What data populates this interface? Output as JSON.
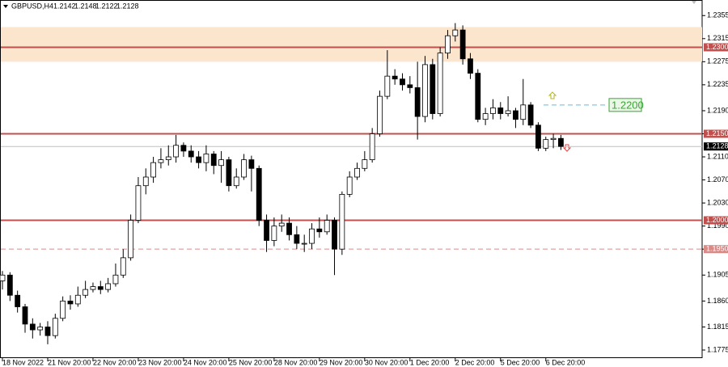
{
  "chart_data": {
    "type": "candlestick",
    "title": "GBPUSD,H4",
    "categories": [
      "18 Nov 2022",
      null,
      null,
      null,
      null,
      null,
      "21 Nov 20:00",
      null,
      null,
      null,
      null,
      null,
      "22 Nov 20:00",
      null,
      null,
      null,
      null,
      null,
      "23 Nov 20:00",
      null,
      null,
      null,
      null,
      null,
      "24 Nov 20:00",
      null,
      null,
      null,
      null,
      null,
      "25 Nov 20:00",
      null,
      null,
      null,
      null,
      null,
      "28 Nov 20:00",
      null,
      null,
      null,
      null,
      null,
      "29 Nov 20:00",
      null,
      null,
      null,
      null,
      null,
      "30 Nov 20:00",
      null,
      null,
      null,
      null,
      null,
      "1 Dec 20:00",
      null,
      null,
      null,
      null,
      null,
      "2 Dec 20:00",
      null,
      null,
      null,
      null,
      null,
      "5 Dec 20:00",
      null,
      null,
      null,
      null,
      null,
      "6 Dec 20:00",
      null,
      null
    ],
    "open": [
      1.1895,
      1.1905,
      1.187,
      1.185,
      1.182,
      1.181,
      1.1815,
      1.18,
      1.183,
      1.186,
      1.1855,
      1.187,
      1.188,
      1.1885,
      1.188,
      1.189,
      1.1905,
      1.1935,
      1.2,
      1.206,
      1.2075,
      1.21,
      1.2105,
      1.211,
      1.213,
      1.212,
      1.211,
      1.21,
      1.2115,
      1.2095,
      1.2105,
      1.206,
      1.2075,
      1.2105,
      1.209,
      1.2,
      1.1965,
      1.199,
      1.1995,
      1.1975,
      1.196,
      1.196,
      1.1985,
      1.198,
      1.2,
      1.195,
      1.2045,
      1.2075,
      1.209,
      1.2105,
      1.215,
      1.2215,
      1.225,
      1.2245,
      1.2235,
      1.223,
      1.218,
      1.227,
      1.2185,
      1.229,
      1.232,
      1.233,
      1.228,
      1.2255,
      1.2175,
      1.2185,
      1.2195,
      1.2185,
      1.219,
      1.2175,
      1.22,
      1.2165,
      1.2125,
      1.214,
      1.2142
    ],
    "high": [
      1.1912,
      1.191,
      1.1878,
      1.1855,
      1.183,
      1.1822,
      1.1825,
      1.1838,
      1.1868,
      1.187,
      1.1885,
      1.1895,
      1.1892,
      1.1895,
      1.19,
      1.1925,
      1.195,
      1.201,
      1.2075,
      1.209,
      1.211,
      1.2125,
      1.213,
      1.2148,
      1.2135,
      1.213,
      1.212,
      1.213,
      1.212,
      1.212,
      1.211,
      1.209,
      1.2115,
      1.2112,
      1.2095,
      1.201,
      1.2005,
      1.201,
      1.2005,
      1.199,
      1.1975,
      1.1995,
      1.2005,
      1.201,
      1.2005,
      1.205,
      1.2085,
      1.21,
      1.212,
      1.216,
      1.2225,
      1.2295,
      1.2262,
      1.2255,
      1.225,
      1.2275,
      1.2285,
      1.228,
      1.23,
      1.233,
      1.2342,
      1.2338,
      1.229,
      1.2262,
      1.2195,
      1.221,
      1.2205,
      1.2215,
      1.2195,
      1.2245,
      1.2205,
      1.217,
      1.2145,
      1.215,
      1.2148
    ],
    "low": [
      1.188,
      1.186,
      1.184,
      1.1805,
      1.1795,
      1.18,
      1.1785,
      1.1795,
      1.1825,
      1.1845,
      1.185,
      1.1865,
      1.1875,
      1.1872,
      1.1875,
      1.1885,
      1.19,
      1.193,
      1.1995,
      1.2045,
      1.2065,
      1.209,
      1.2095,
      1.21,
      1.211,
      1.21,
      1.209,
      1.2085,
      1.208,
      1.2065,
      1.205,
      1.2055,
      1.207,
      1.205,
      1.199,
      1.1945,
      1.1955,
      1.198,
      1.1965,
      1.195,
      1.1945,
      1.195,
      1.197,
      1.1975,
      1.1905,
      1.194,
      1.204,
      1.207,
      1.2085,
      1.21,
      1.2145,
      1.221,
      1.2235,
      1.2225,
      1.222,
      1.214,
      1.217,
      1.2175,
      1.218,
      1.228,
      1.231,
      1.227,
      1.2245,
      1.217,
      1.2165,
      1.2175,
      1.2175,
      1.218,
      1.216,
      1.2165,
      1.216,
      1.212,
      1.212,
      1.2125,
      1.2122
    ],
    "close": [
      1.1905,
      1.187,
      1.185,
      1.182,
      1.181,
      1.1815,
      1.18,
      1.183,
      1.186,
      1.1855,
      1.187,
      1.188,
      1.1885,
      1.188,
      1.189,
      1.1905,
      1.1935,
      1.2,
      1.206,
      1.2075,
      1.21,
      1.2105,
      1.211,
      1.213,
      1.212,
      1.211,
      1.21,
      1.2115,
      1.2095,
      1.2105,
      1.206,
      1.2075,
      1.2105,
      1.209,
      1.2,
      1.1965,
      1.199,
      1.1995,
      1.1975,
      1.196,
      1.196,
      1.1985,
      1.198,
      1.2,
      1.195,
      1.2045,
      1.2075,
      1.209,
      1.2105,
      1.215,
      1.2215,
      1.225,
      1.2245,
      1.2235,
      1.223,
      1.218,
      1.227,
      1.2185,
      1.229,
      1.232,
      1.233,
      1.228,
      1.2255,
      1.2175,
      1.2185,
      1.2195,
      1.2185,
      1.219,
      1.2175,
      1.22,
      1.2165,
      1.2125,
      1.214,
      1.2142,
      1.2128
    ],
    "up_color": "#ffffff",
    "down_color": "#000000",
    "ylim": [
      1.1761,
      1.2382
    ],
    "yticks": [
      1.2355,
      1.2315,
      1.2275,
      1.2235,
      {
        "value": 1.219,
        "label": "1.2190"
      },
      {
        "value": 1.215,
        "label": "1.2150"
      },
      {
        "value": 1.211,
        "label": "1.2110"
      },
      {
        "value": 1.207,
        "label": "1.2070"
      },
      {
        "value": 1.203,
        "label": "1.2030"
      },
      {
        "value": 1.199,
        "label": "1.1990"
      },
      {
        "value": 1.195,
        "label": "1.1950"
      },
      1.1905,
      {
        "value": 1.186,
        "label": "1.1860"
      },
      1.1815,
      1.1775
    ],
    "zone": {
      "from": 1.2275,
      "to": 1.2335,
      "color": "#fbe5cd"
    },
    "levels": [
      {
        "value": 1.23,
        "label": "1.2300",
        "style": "solid",
        "color": "#c0504d"
      },
      {
        "value": 1.215,
        "label": "1.2150",
        "style": "solid",
        "color": "#c0504d"
      },
      {
        "value": 1.2,
        "label": "1.2000",
        "style": "solid",
        "color": "#c0504d"
      },
      {
        "value": 1.195,
        "label": "1.1950",
        "style": "dashed",
        "color": "#d98b88"
      }
    ],
    "current_price": 1.2128,
    "target": {
      "value": 1.22,
      "label": "1.2200",
      "color": "#5bc0de",
      "label_color": "#3aa635"
    }
  }
}
